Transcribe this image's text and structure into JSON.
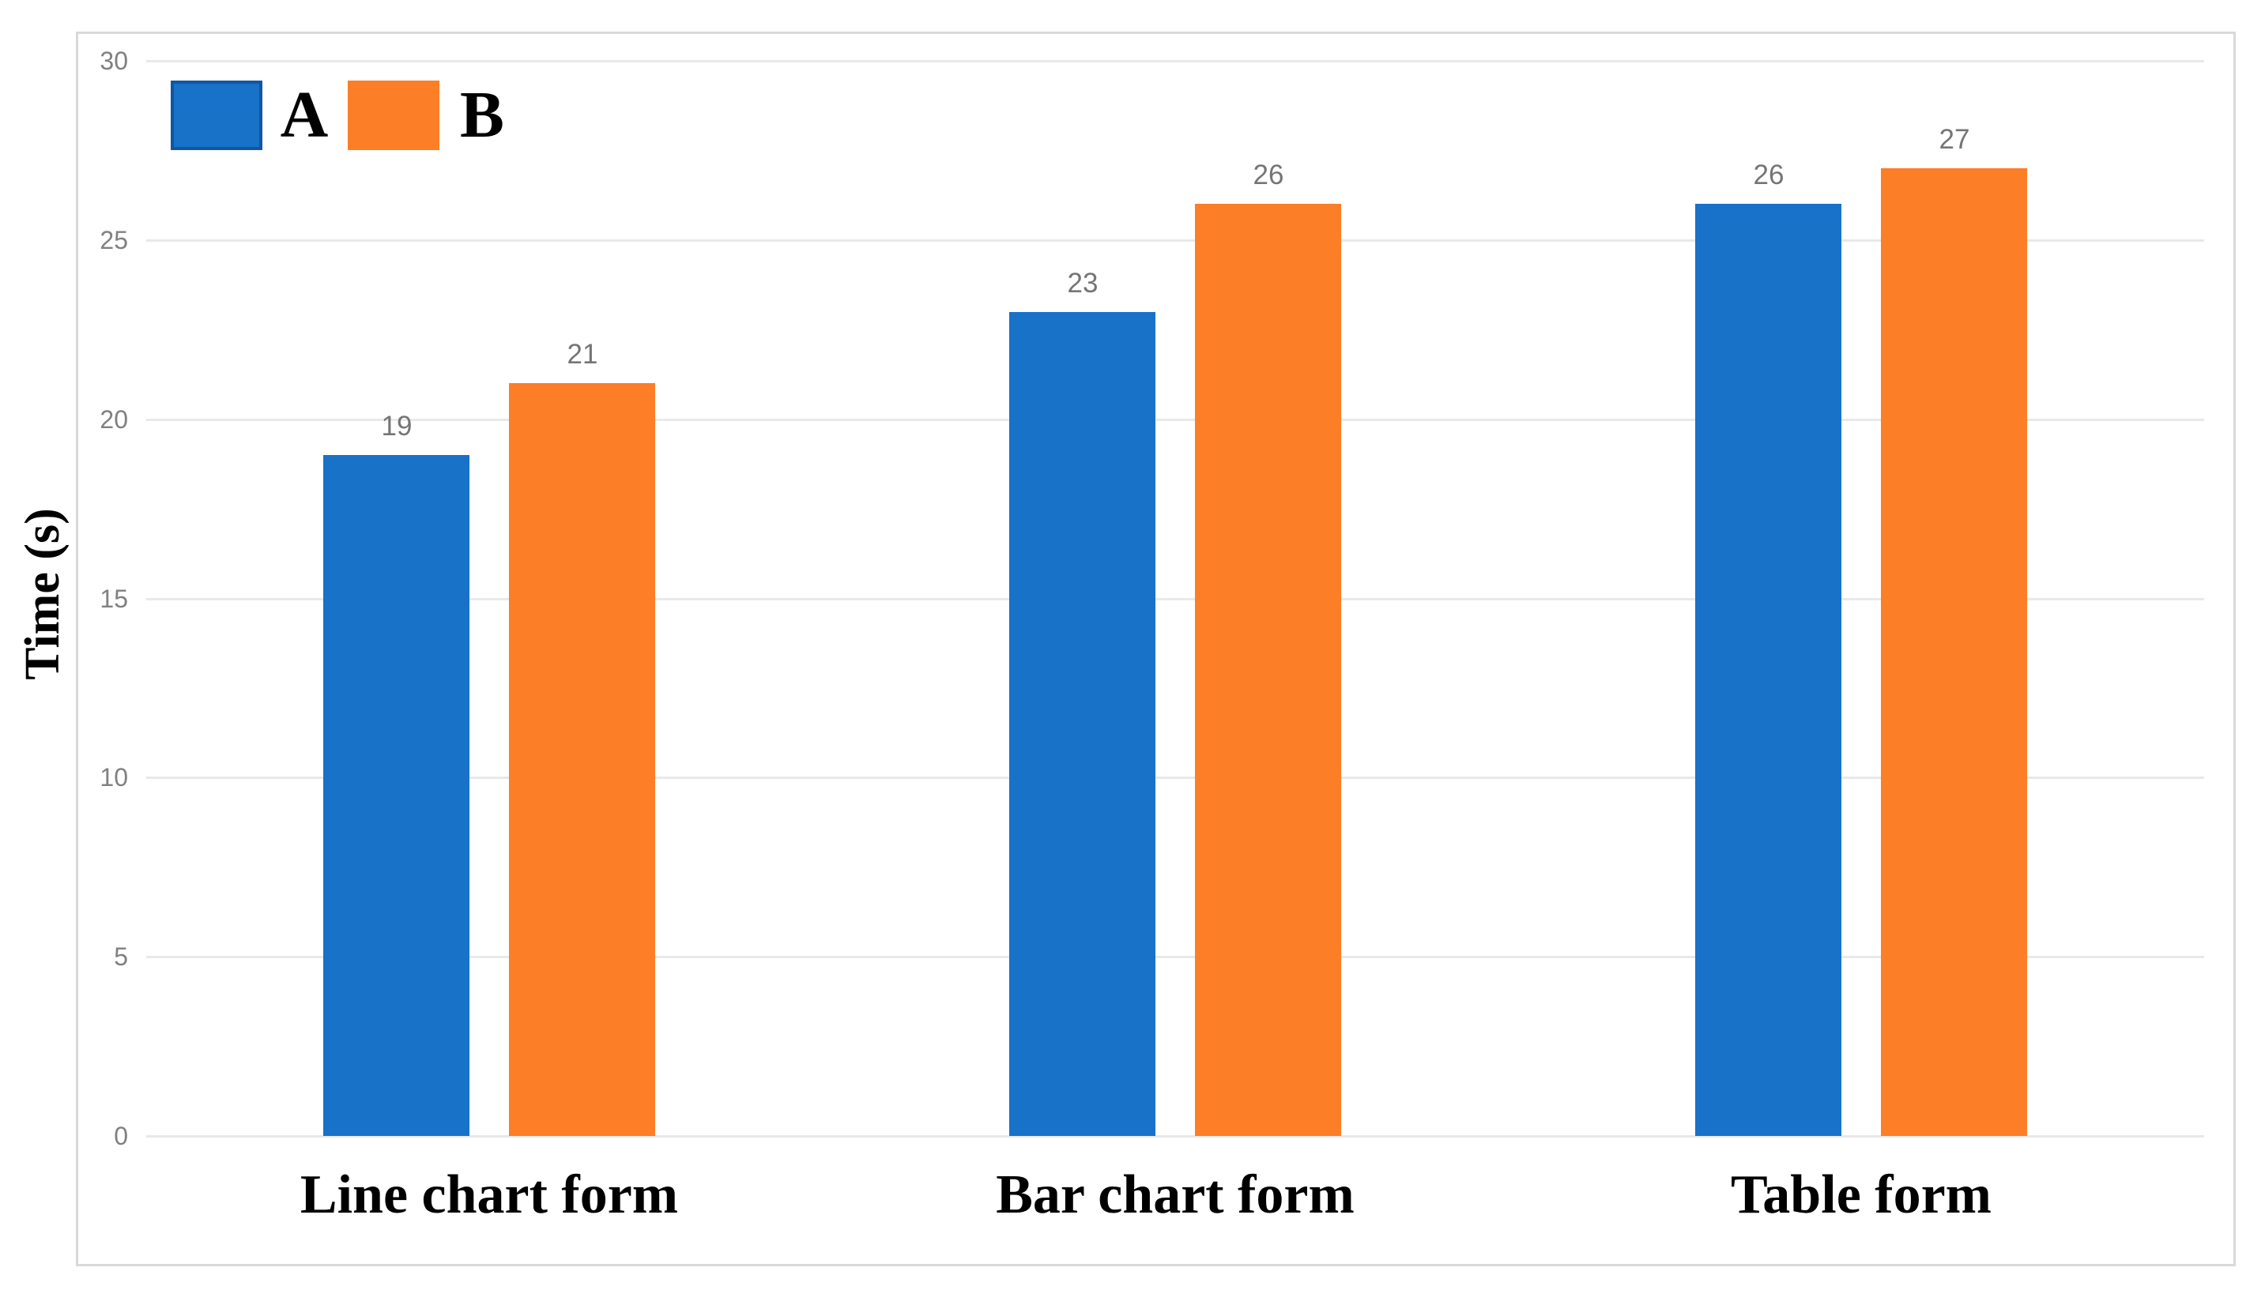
{
  "chart_data": {
    "type": "bar",
    "categories": [
      "Line chart form",
      "Bar chart form",
      "Table form"
    ],
    "series": [
      {
        "name": "A",
        "color": "#1772c8",
        "values": [
          19,
          23,
          26
        ]
      },
      {
        "name": "B",
        "color": "#fc7e26",
        "values": [
          21,
          26,
          27
        ]
      }
    ],
    "title": "",
    "xlabel": "",
    "ylabel": "Time (s)",
    "ylim": [
      0,
      30
    ],
    "yticks": [
      0,
      5,
      10,
      15,
      20,
      25,
      30
    ],
    "grid": true,
    "bar_value_labels": {
      "A": [
        "19",
        "23",
        "26"
      ],
      "B": [
        "21",
        "26",
        "27"
      ]
    },
    "legend_position": "top-left"
  },
  "colors": {
    "background": "#ffffff",
    "frame_border": "#d9d9d9",
    "gridline": "#e9e9e9",
    "tick_label": "#808080",
    "value_label": "#757575",
    "text": "#000000",
    "series_a_fill": "#1772c8",
    "series_a_border": "#1156a4",
    "series_b_fill": "#fc7e26"
  }
}
